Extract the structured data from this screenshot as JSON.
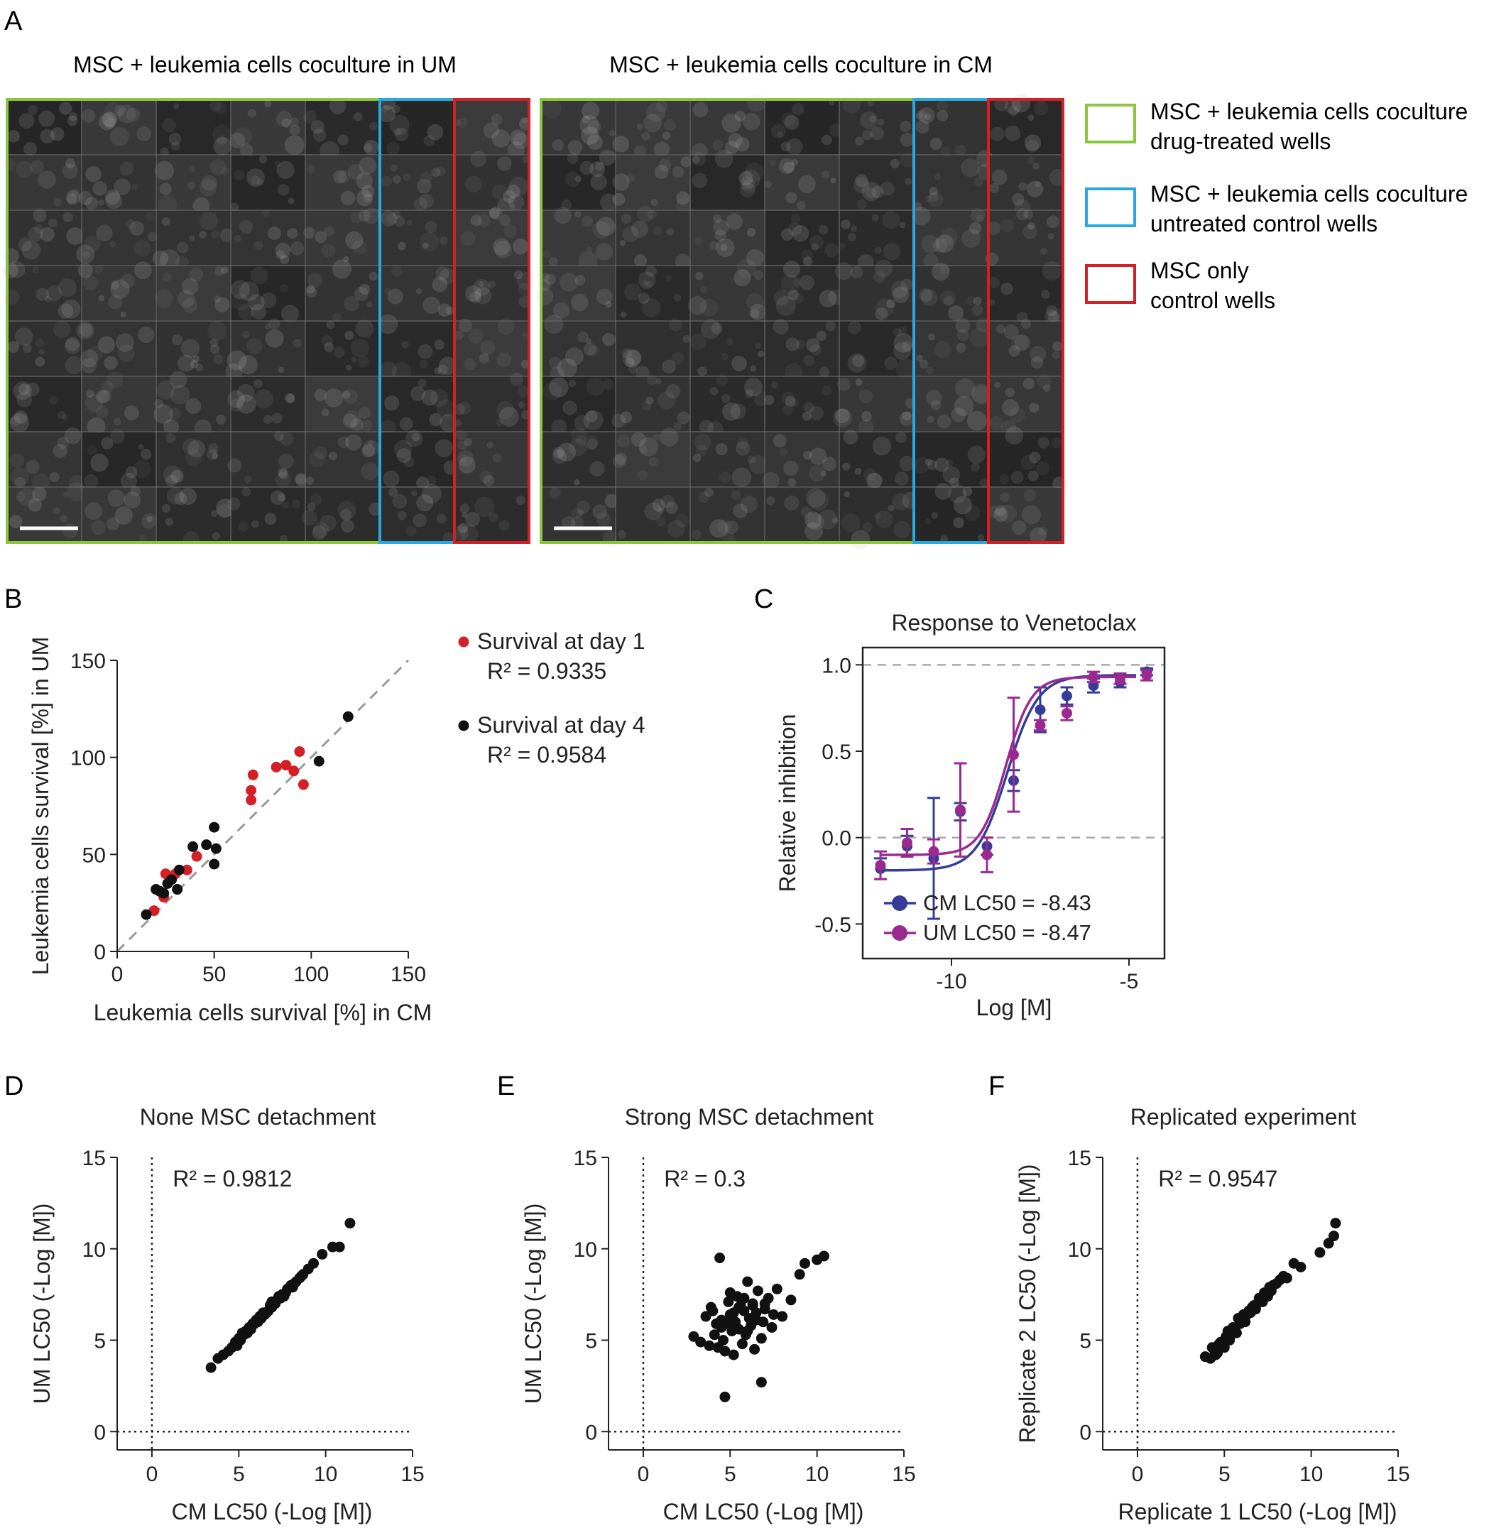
{
  "panel_letters": [
    "A",
    "B",
    "C",
    "D",
    "E",
    "F"
  ],
  "panelA": {
    "title_left": "MSC + leukemia cells coculture in UM",
    "title_right": "MSC + leukemia cells coculture in CM",
    "legend": [
      {
        "line1": "MSC + leukemia cells coculture",
        "line2": "drug-treated wells",
        "color": "#8cc63f"
      },
      {
        "line1": "MSC + leukemia cells coculture",
        "line2": "untreated control wells",
        "color": "#29a9e0"
      },
      {
        "line1": "MSC only",
        "line2": "control wells",
        "color": "#d32027"
      }
    ]
  },
  "colors": {
    "day1": "#d32027",
    "day4": "#111111",
    "cm": "#353c99",
    "um": "#9b2a90",
    "dots": "#111111"
  },
  "chart_data": [
    {
      "id": "B",
      "type": "scatter",
      "xlabel": "Leukemia cells survival [%] in CM",
      "ylabel": "Leukemia cells survival [%] in UM",
      "xlim": [
        0,
        150
      ],
      "ylim": [
        0,
        150
      ],
      "xticks": [
        "0",
        "50",
        "100",
        "150"
      ],
      "yticks": [
        "0",
        "50",
        "100",
        "150"
      ],
      "reference_line": "y = x",
      "series": [
        {
          "name": "Survival at day 1",
          "r2": "R² = 0.9335",
          "x": [
            19,
            24,
            25,
            30,
            36,
            41,
            69,
            69,
            70,
            82,
            87,
            91,
            94,
            96
          ],
          "y": [
            21,
            28,
            40,
            40,
            42,
            49,
            78,
            83,
            91,
            95,
            96,
            93,
            103,
            86
          ]
        },
        {
          "name": "Survival at day 4",
          "r2": "R² = 0.9584",
          "x": [
            15,
            20,
            22,
            24,
            26,
            28,
            31,
            32,
            39,
            46,
            50,
            50,
            51,
            104,
            119
          ],
          "y": [
            19,
            32,
            31,
            30,
            35,
            37,
            32,
            42,
            54,
            55,
            64,
            45,
            53,
            98,
            121
          ]
        }
      ]
    },
    {
      "id": "C",
      "type": "line",
      "title": "Response to Venetoclax",
      "xlabel": "Log [M]",
      "ylabel": "Relative inhibition",
      "xlim": [
        -12.5,
        -4
      ],
      "ylim": [
        -0.7,
        1.1
      ],
      "xticks": [
        "-10",
        "-5"
      ],
      "yticks": [
        "1.0",
        "0.5",
        "0.0",
        "-0.5"
      ],
      "reference_lines": [
        0,
        1
      ],
      "series": [
        {
          "name": "CM LC50 = -8.43",
          "lc50": -8.43,
          "bottom": -0.19,
          "top": 0.94,
          "hill": 1.0,
          "x": [
            -12,
            -11.25,
            -10.5,
            -9.75,
            -9,
            -8.25,
            -7.5,
            -6.75,
            -6,
            -5.25,
            -4.5
          ],
          "y": [
            -0.18,
            -0.05,
            -0.12,
            0.15,
            -0.05,
            0.33,
            0.74,
            0.82,
            0.88,
            0.9,
            0.96
          ],
          "err": [
            0.06,
            0.06,
            0.35,
            0.05,
            0.05,
            0.06,
            0.13,
            0.05,
            0.04,
            0.03,
            0.02
          ]
        },
        {
          "name": "UM LC50 = -8.47",
          "lc50": -8.47,
          "bottom": -0.1,
          "top": 0.93,
          "hill": 1.2,
          "x": [
            -12,
            -11.25,
            -10.5,
            -9.75,
            -9,
            -8.25,
            -7.5,
            -6.75,
            -6,
            -5.25,
            -4.5
          ],
          "y": [
            -0.16,
            -0.03,
            -0.08,
            0.16,
            -0.1,
            0.48,
            0.65,
            0.72,
            0.93,
            0.92,
            0.94
          ],
          "err": [
            0.08,
            0.08,
            0.07,
            0.27,
            0.1,
            0.33,
            0.03,
            0.04,
            0.03,
            0.03,
            0.03
          ]
        }
      ]
    },
    {
      "id": "D",
      "type": "scatter",
      "title": "None MSC detachment",
      "xlabel": "CM LC50 (-Log [M])",
      "ylabel": "UM LC50 (-Log [M])",
      "annotation": "R² = 0.9812",
      "xlim": [
        -2,
        15
      ],
      "ylim": [
        -1,
        15
      ],
      "xticks": [
        "0",
        "5",
        "10",
        "15"
      ],
      "yticks": [
        "0",
        "5",
        "10",
        "15"
      ],
      "x": [
        3.4,
        3.8,
        4.1,
        4.4,
        4.6,
        4.8,
        5.0,
        5.1,
        5.3,
        5.4,
        5.6,
        5.7,
        5.9,
        6.0,
        6.1,
        6.3,
        6.4,
        6.5,
        6.7,
        6.8,
        6.9,
        7.1,
        7.2,
        7.4,
        7.5,
        7.7,
        7.8,
        8.0,
        8.1,
        8.3,
        8.5,
        8.7,
        9.0,
        9.3,
        9.8,
        10.4,
        10.8,
        11.4,
        5.2,
        5.8,
        6.2,
        6.6,
        7.0,
        7.6,
        8.2,
        4.9,
        5.5,
        6.9,
        7.3,
        8.6
      ],
      "y": [
        3.5,
        4.0,
        4.2,
        4.4,
        4.6,
        4.9,
        5.1,
        5.0,
        5.3,
        5.5,
        5.7,
        5.6,
        5.9,
        6.1,
        6.0,
        6.2,
        6.5,
        6.4,
        6.6,
        6.9,
        6.8,
        7.0,
        7.2,
        7.3,
        7.5,
        7.6,
        7.8,
        8.0,
        7.9,
        8.2,
        8.4,
        8.6,
        8.9,
        9.2,
        9.7,
        10.1,
        10.1,
        11.4,
        5.4,
        5.9,
        6.3,
        6.5,
        7.1,
        7.4,
        8.1,
        4.7,
        5.4,
        7.1,
        7.4,
        8.5
      ]
    },
    {
      "id": "E",
      "type": "scatter",
      "title": "Strong MSC detachment",
      "xlabel": "CM LC50 (-Log [M])",
      "ylabel": "UM LC50 (-Log [M])",
      "annotation": "R² = 0.3",
      "xlim": [
        -2,
        15
      ],
      "ylim": [
        -1,
        15
      ],
      "xticks": [
        "0",
        "5",
        "10",
        "15"
      ],
      "yticks": [
        "0",
        "5",
        "10",
        "15"
      ],
      "x": [
        2.9,
        3.3,
        3.6,
        3.9,
        4.1,
        4.3,
        4.4,
        4.5,
        4.6,
        4.7,
        4.8,
        4.9,
        5.0,
        5.1,
        5.2,
        5.3,
        5.4,
        5.5,
        5.6,
        5.7,
        5.8,
        5.9,
        6.0,
        6.1,
        6.2,
        6.3,
        6.4,
        6.5,
        6.6,
        6.8,
        7.0,
        7.2,
        7.4,
        7.7,
        8.0,
        8.5,
        9.0,
        9.3,
        10.0,
        10.4,
        4.7,
        6.8,
        4.5,
        5.0,
        5.5,
        6.0,
        6.5,
        7.0,
        5.2,
        5.8,
        6.3,
        4.2,
        4.0,
        7.5,
        3.8,
        6.9
      ],
      "y": [
        5.2,
        4.9,
        6.3,
        6.8,
        5.3,
        4.6,
        9.5,
        6.1,
        5.0,
        4.4,
        5.9,
        7.1,
        6.4,
        5.5,
        4.2,
        6.0,
        7.4,
        5.6,
        6.9,
        4.8,
        6.6,
        5.3,
        8.2,
        6.2,
        5.8,
        7.0,
        4.5,
        6.5,
        7.7,
        5.1,
        6.7,
        7.3,
        5.7,
        7.8,
        6.3,
        7.2,
        8.6,
        9.2,
        9.4,
        9.6,
        1.9,
        2.7,
        5.7,
        7.6,
        6.8,
        5.5,
        6.1,
        7.0,
        6.5,
        7.3,
        6.9,
        5.9,
        6.6,
        6.4,
        4.7,
        6.0
      ]
    },
    {
      "id": "F",
      "type": "scatter",
      "title": "Replicated experiment",
      "xlabel": "Replicate 1 LC50 (-Log [M])",
      "ylabel": "Replicate 2 LC50 (-Log [M])",
      "annotation": "R² = 0.9547",
      "xlim": [
        -2,
        15
      ],
      "ylim": [
        -1,
        15
      ],
      "xticks": [
        "0",
        "5",
        "10",
        "15"
      ],
      "yticks": [
        "0",
        "5",
        "10",
        "15"
      ],
      "x": [
        3.9,
        4.2,
        4.4,
        4.6,
        4.8,
        5.0,
        5.1,
        5.3,
        5.4,
        5.6,
        5.7,
        5.9,
        6.0,
        6.2,
        6.3,
        6.5,
        6.6,
        6.8,
        6.9,
        7.1,
        7.2,
        7.4,
        7.5,
        7.7,
        7.8,
        8.0,
        8.2,
        8.4,
        8.6,
        9.0,
        9.4,
        10.5,
        11.0,
        11.3,
        11.4,
        4.3,
        4.7,
        5.2,
        5.8,
        6.4,
        7.0,
        7.6,
        4.5,
        5.5,
        6.1,
        6.7,
        7.3
      ],
      "y": [
        4.1,
        4.0,
        4.5,
        4.3,
        4.9,
        4.6,
        5.2,
        5.0,
        5.3,
        5.6,
        5.4,
        5.9,
        6.1,
        6.0,
        6.4,
        6.5,
        6.8,
        6.7,
        7.0,
        7.2,
        7.1,
        7.5,
        7.4,
        7.7,
        8.0,
        8.1,
        8.3,
        8.5,
        8.4,
        9.2,
        9.0,
        9.8,
        10.3,
        10.7,
        11.4,
        4.6,
        4.8,
        5.5,
        6.2,
        6.6,
        7.3,
        7.9,
        4.2,
        5.7,
        6.4,
        6.9,
        7.6
      ]
    }
  ]
}
